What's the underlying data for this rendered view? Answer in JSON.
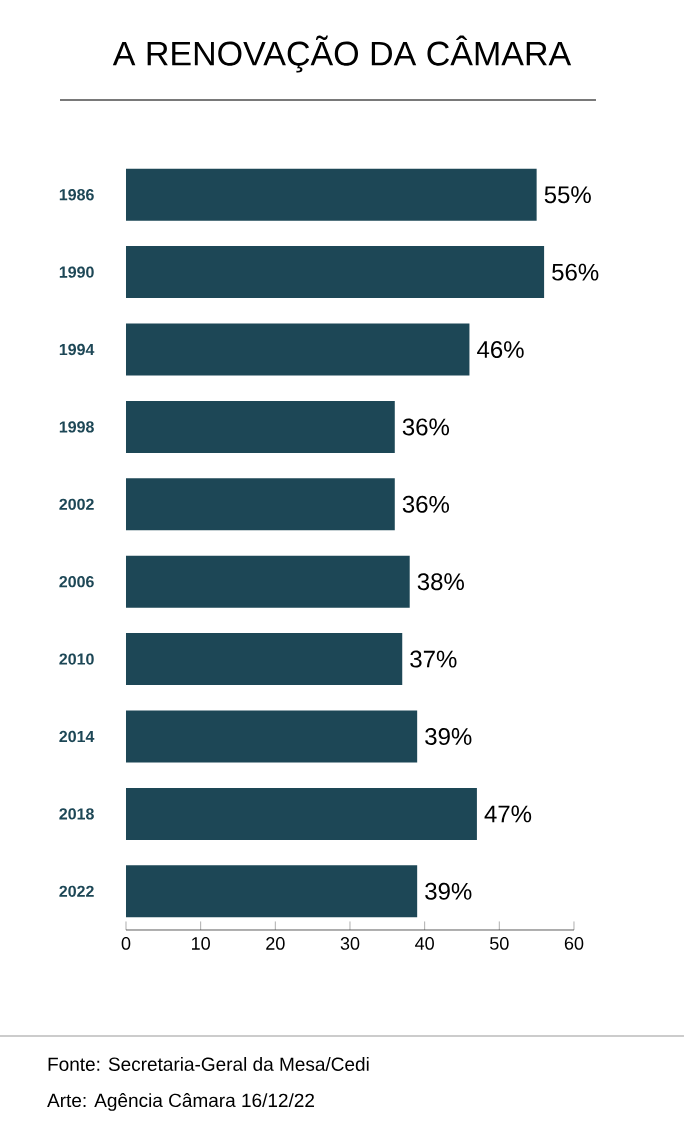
{
  "chart_data": {
    "type": "bar",
    "orientation": "horizontal",
    "title": "A RENOVAÇÃO DA CÂMARA",
    "categories": [
      "1986",
      "1990",
      "1994",
      "1998",
      "2002",
      "2006",
      "2010",
      "2014",
      "2018",
      "2022"
    ],
    "values": [
      55,
      56,
      46,
      36,
      36,
      38,
      37,
      39,
      47,
      39
    ],
    "value_labels": [
      "55%",
      "56%",
      "46%",
      "36%",
      "36%",
      "38%",
      "37%",
      "39%",
      "47%",
      "39%"
    ],
    "color": "#1d4756",
    "xlim": [
      0,
      60
    ],
    "xticks": [
      0,
      10,
      20,
      30,
      40,
      50,
      60
    ],
    "grid": false,
    "annotations": [
      "Fonte: Secretaria-Geral da Mesa/Cedi",
      "Arte: Agência Câmara 16/12/22"
    ]
  }
}
